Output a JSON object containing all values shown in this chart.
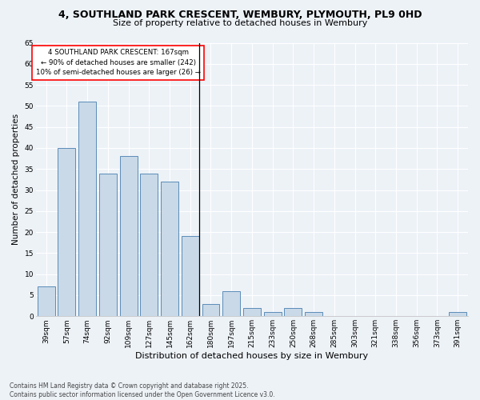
{
  "title_line1": "4, SOUTHLAND PARK CRESCENT, WEMBURY, PLYMOUTH, PL9 0HD",
  "title_line2": "Size of property relative to detached houses in Wembury",
  "xlabel": "Distribution of detached houses by size in Wembury",
  "ylabel": "Number of detached properties",
  "categories": [
    "39sqm",
    "57sqm",
    "74sqm",
    "92sqm",
    "109sqm",
    "127sqm",
    "145sqm",
    "162sqm",
    "180sqm",
    "197sqm",
    "215sqm",
    "233sqm",
    "250sqm",
    "268sqm",
    "285sqm",
    "303sqm",
    "321sqm",
    "338sqm",
    "356sqm",
    "373sqm",
    "391sqm"
  ],
  "values": [
    7,
    40,
    51,
    34,
    38,
    34,
    32,
    19,
    3,
    6,
    2,
    1,
    2,
    1,
    0,
    0,
    0,
    0,
    0,
    0,
    1
  ],
  "bar_color": "#c9d9e8",
  "bar_edge_color": "#5b8db8",
  "ylim": [
    0,
    65
  ],
  "yticks": [
    0,
    5,
    10,
    15,
    20,
    25,
    30,
    35,
    40,
    45,
    50,
    55,
    60,
    65
  ],
  "annotation_text_line1": "4 SOUTHLAND PARK CRESCENT: 167sqm",
  "annotation_text_line2": "← 90% of detached houses are smaller (242)",
  "annotation_text_line3": "10% of semi-detached houses are larger (26) →",
  "vline_x_idx": 7,
  "footer_line1": "Contains HM Land Registry data © Crown copyright and database right 2025.",
  "footer_line2": "Contains public sector information licensed under the Open Government Licence v3.0.",
  "bg_color": "#edf2f7",
  "plot_bg_color": "#edf2f7",
  "grid_color": "#ffffff",
  "title1_fontsize": 9,
  "title2_fontsize": 8,
  "ylabel_fontsize": 7.5,
  "xlabel_fontsize": 8,
  "tick_fontsize": 6.5,
  "footer_fontsize": 5.5
}
